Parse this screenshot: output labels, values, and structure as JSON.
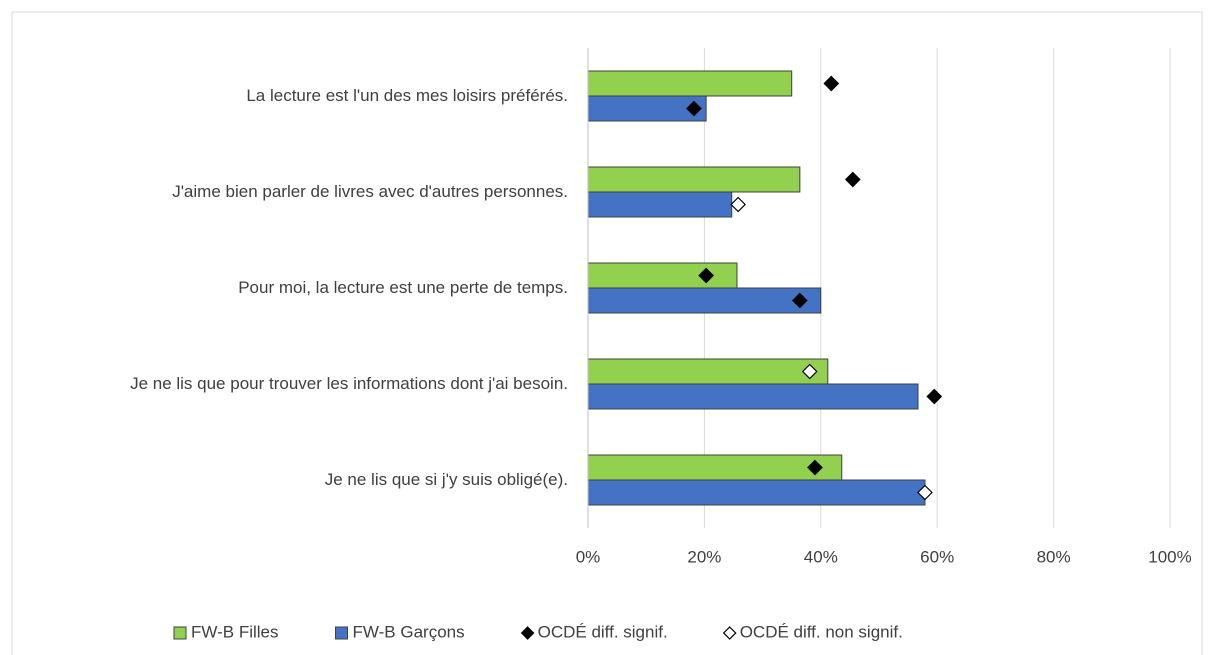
{
  "chart_data": {
    "type": "bar",
    "orientation": "horizontal",
    "categories": [
      "La lecture est l'un des mes loisirs préférés.",
      "J'aime bien parler de livres avec d'autres personnes.",
      "Pour moi, la lecture est une perte de temps.",
      "Je ne lis que pour trouver les informations dont j'ai besoin.",
      "Je ne lis que si j'y suis obligé(e)."
    ],
    "series": [
      {
        "name": "FW-B Filles",
        "color": "#92d050",
        "values": [
          35,
          36.4,
          25.6,
          41.2,
          43.6
        ]
      },
      {
        "name": "FW-B Garçons",
        "color": "#4472c4",
        "values": [
          20.3,
          24.7,
          40,
          56.7,
          57.9
        ]
      }
    ],
    "markers": [
      {
        "name": "OCDÉ diff.  signif.",
        "color": "#000000",
        "filles": [
          41.8,
          45.5,
          20.3,
          null,
          39
        ],
        "garcons": [
          18.2,
          null,
          36.4,
          59.5,
          null
        ]
      },
      {
        "name": "OCDÉ diff. non signif.",
        "color": "#ffffff",
        "filles": [
          null,
          null,
          null,
          38.1,
          null
        ],
        "garcons": [
          null,
          25.8,
          null,
          null,
          57.9
        ]
      }
    ],
    "xlim": [
      0,
      100
    ],
    "xticks": [
      {
        "value": 0,
        "label": "0%"
      },
      {
        "value": 20,
        "label": "20%"
      },
      {
        "value": 40,
        "label": "40%"
      },
      {
        "value": 60,
        "label": "60%"
      },
      {
        "value": 80,
        "label": "80%"
      },
      {
        "value": 100,
        "label": "100%"
      }
    ],
    "grid": true,
    "legend": "bottom"
  }
}
